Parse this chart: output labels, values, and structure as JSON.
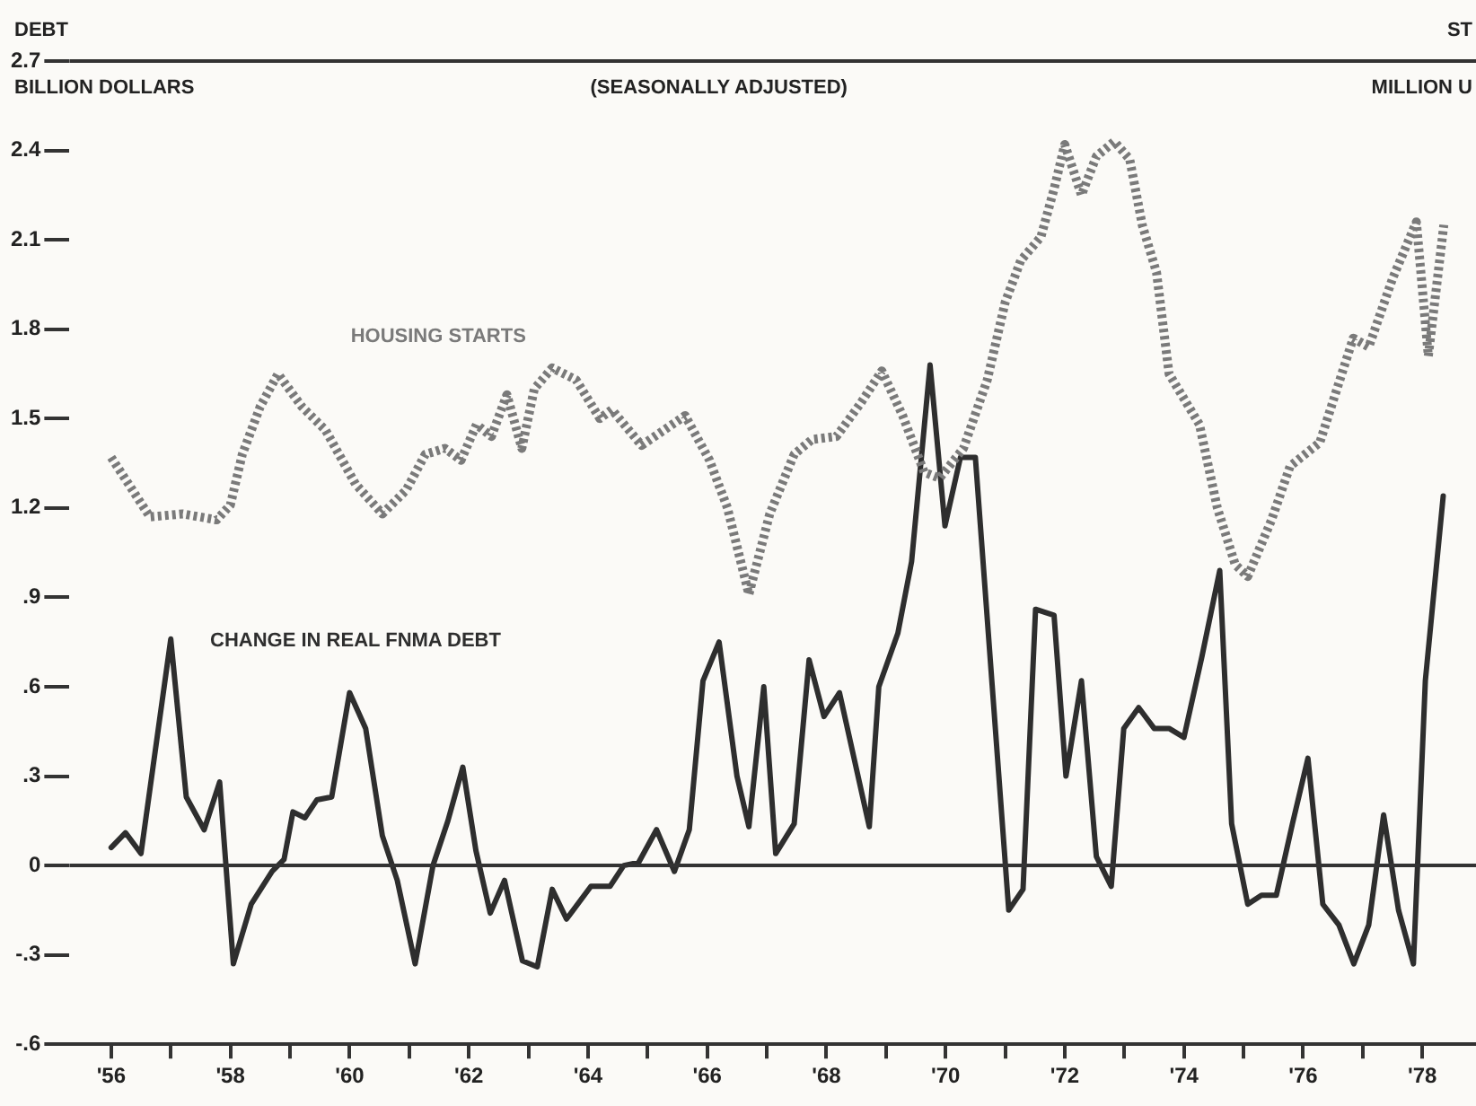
{
  "chart_data": {
    "type": "line",
    "subtitle": "(SEASONALLY ADJUSTED)",
    "ylabel": "BILLION DOLLARS",
    "annotations": [
      "DEBT",
      "ST",
      "MILLION U"
    ],
    "xlim": [
      1955.3,
      1978.9
    ],
    "xticks": [
      {
        "value": 1956,
        "label": "'56"
      },
      {
        "value": 1957,
        "label": null
      },
      {
        "value": 1958,
        "label": "'58"
      },
      {
        "value": 1959,
        "label": null
      },
      {
        "value": 1960,
        "label": "'60"
      },
      {
        "value": 1961,
        "label": null
      },
      {
        "value": 1962,
        "label": "'62"
      },
      {
        "value": 1963,
        "label": null
      },
      {
        "value": 1964,
        "label": "'64"
      },
      {
        "value": 1965,
        "label": null
      },
      {
        "value": 1966,
        "label": "'66"
      },
      {
        "value": 1967,
        "label": null
      },
      {
        "value": 1968,
        "label": "'68"
      },
      {
        "value": 1969,
        "label": null
      },
      {
        "value": 1970,
        "label": "'70"
      },
      {
        "value": 1971,
        "label": null
      },
      {
        "value": 1972,
        "label": "'72"
      },
      {
        "value": 1973,
        "label": null
      },
      {
        "value": 1974,
        "label": "'74"
      },
      {
        "value": 1975,
        "label": null
      },
      {
        "value": 1976,
        "label": "'76"
      },
      {
        "value": 1977,
        "label": null
      },
      {
        "value": 1978,
        "label": "'78"
      }
    ],
    "ylim": [
      -0.6,
      2.7
    ],
    "yticks": [
      {
        "value": -0.6,
        "label": "-.6"
      },
      {
        "value": -0.3,
        "label": "-.3"
      },
      0,
      {
        "value": 0.3,
        "label": ".3"
      },
      {
        "value": 0.6,
        "label": ".6"
      },
      {
        "value": 0.9,
        "label": ".9"
      },
      1.2,
      1.5,
      1.8,
      2.1,
      2.4,
      2.7
    ],
    "grid": false,
    "legend": false,
    "marker": "none",
    "ref_lines": [
      {
        "axis": "y",
        "value": 0
      }
    ],
    "series": [
      {
        "name": "HOUSING STARTS",
        "color": "#7a7a7a",
        "line_style": "dotted",
        "x": [
          1956.0,
          1956.65,
          1957.2,
          1957.77,
          1958.0,
          1958.2,
          1958.5,
          1958.8,
          1959.2,
          1959.6,
          1960.1,
          1960.55,
          1960.95,
          1961.27,
          1961.6,
          1961.87,
          1962.13,
          1962.38,
          1962.64,
          1962.89,
          1963.1,
          1963.4,
          1963.8,
          1964.2,
          1964.4,
          1964.9,
          1965.63,
          1966.04,
          1966.34,
          1966.7,
          1967.05,
          1967.46,
          1967.76,
          1968.17,
          1968.57,
          1968.93,
          1969.28,
          1969.64,
          1969.9,
          1970.3,
          1970.7,
          1971.0,
          1971.26,
          1971.6,
          1971.82,
          1972.0,
          1972.28,
          1972.53,
          1972.83,
          1973.09,
          1973.3,
          1973.54,
          1973.75,
          1974.26,
          1974.56,
          1974.86,
          1975.07,
          1975.47,
          1975.78,
          1976.28,
          1976.84,
          1977.1,
          1977.5,
          1977.9,
          1978.1,
          1978.36
        ],
        "values": [
          1.37,
          1.17,
          1.18,
          1.16,
          1.21,
          1.38,
          1.54,
          1.65,
          1.54,
          1.46,
          1.28,
          1.18,
          1.26,
          1.38,
          1.4,
          1.36,
          1.48,
          1.44,
          1.58,
          1.4,
          1.6,
          1.67,
          1.63,
          1.5,
          1.53,
          1.41,
          1.51,
          1.36,
          1.2,
          0.91,
          1.18,
          1.38,
          1.43,
          1.44,
          1.55,
          1.66,
          1.51,
          1.32,
          1.3,
          1.4,
          1.63,
          1.89,
          2.03,
          2.11,
          2.27,
          2.42,
          2.25,
          2.38,
          2.43,
          2.37,
          2.15,
          1.99,
          1.65,
          1.48,
          1.2,
          1.01,
          0.97,
          1.16,
          1.34,
          1.42,
          1.77,
          1.74,
          1.97,
          2.16,
          1.71,
          2.15
        ]
      },
      {
        "name": "CHANGE IN REAL FNMA DEBT",
        "color": "#2e2e2e",
        "line_style": "solid",
        "x": [
          1956.0,
          1956.24,
          1956.5,
          1957.0,
          1957.26,
          1957.56,
          1957.82,
          1958.05,
          1958.35,
          1958.7,
          1958.9,
          1959.05,
          1959.25,
          1959.45,
          1959.7,
          1960.0,
          1960.27,
          1960.55,
          1960.8,
          1961.1,
          1961.4,
          1961.65,
          1961.9,
          1962.12,
          1962.36,
          1962.6,
          1962.9,
          1963.15,
          1963.4,
          1963.64,
          1964.05,
          1964.37,
          1964.6,
          1964.85,
          1965.15,
          1965.45,
          1965.7,
          1965.93,
          1966.2,
          1966.5,
          1966.7,
          1966.95,
          1967.15,
          1967.46,
          1967.71,
          1967.96,
          1968.22,
          1968.72,
          1968.88,
          1969.2,
          1969.43,
          1969.74,
          1969.99,
          1970.25,
          1970.5,
          1971.06,
          1971.3,
          1971.51,
          1971.82,
          1972.02,
          1972.28,
          1972.53,
          1972.78,
          1972.99,
          1973.24,
          1973.5,
          1973.75,
          1974.0,
          1974.3,
          1974.6,
          1974.8,
          1975.07,
          1975.3,
          1975.55,
          1975.82,
          1976.08,
          1976.33,
          1976.6,
          1976.85,
          1977.1,
          1977.35,
          1977.6,
          1977.85,
          1978.05,
          1978.35
        ],
        "values": [
          0.06,
          0.11,
          0.04,
          0.76,
          0.23,
          0.12,
          0.28,
          -0.33,
          -0.13,
          -0.02,
          0.02,
          0.18,
          0.16,
          0.22,
          0.23,
          0.58,
          0.46,
          0.1,
          -0.05,
          -0.33,
          0,
          0.15,
          0.33,
          0.05,
          -0.16,
          -0.05,
          -0.32,
          -0.34,
          -0.08,
          -0.18,
          -0.07,
          -0.07,
          0,
          0.01,
          0.12,
          -0.02,
          0.12,
          0.62,
          0.75,
          0.3,
          0.13,
          0.6,
          0.04,
          0.14,
          0.69,
          0.5,
          0.58,
          0.13,
          0.6,
          0.78,
          1.02,
          1.68,
          1.14,
          1.37,
          1.37,
          -0.15,
          -0.08,
          0.86,
          0.84,
          0.3,
          0.62,
          0.03,
          -0.07,
          0.46,
          0.53,
          0.46,
          0.46,
          0.43,
          0.7,
          0.99,
          0.14,
          -0.13,
          -0.1,
          -0.1,
          0.14,
          0.36,
          -0.13,
          -0.2,
          -0.33,
          -0.2,
          0.17,
          -0.15,
          -0.33,
          0.62,
          1.24
        ]
      }
    ]
  }
}
